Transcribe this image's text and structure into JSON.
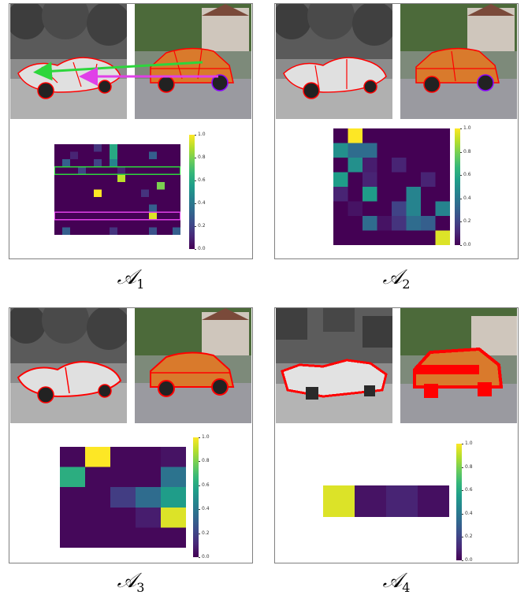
{
  "panels": [
    {
      "id": "A1",
      "label_main": "𝒜",
      "label_sub": "1",
      "heatmap": {
        "rows": 12,
        "cols": 16,
        "cells": [
          [
            0,
            0,
            0,
            0,
            0,
            0.15,
            0,
            0.6,
            0,
            0,
            0,
            0,
            0,
            0,
            0,
            0
          ],
          [
            0,
            0,
            0.1,
            0,
            0,
            0,
            0,
            0.6,
            0,
            0,
            0,
            0,
            0.3,
            0,
            0,
            0
          ],
          [
            0,
            0.3,
            0,
            0,
            0,
            0.2,
            0,
            0.45,
            0,
            0,
            0,
            0,
            0,
            0,
            0,
            0
          ],
          [
            0,
            0,
            0,
            0.2,
            0,
            0,
            0,
            0,
            0.1,
            0,
            0,
            0,
            0,
            0,
            0,
            0
          ],
          [
            0,
            0,
            0,
            0,
            0,
            0,
            0,
            0,
            0.9,
            0,
            0,
            0,
            0,
            0,
            0,
            0
          ],
          [
            0,
            0,
            0,
            0,
            0,
            0,
            0,
            0,
            0,
            0,
            0,
            0,
            0,
            0.8,
            0,
            0
          ],
          [
            0,
            0,
            0,
            0,
            0,
            1.0,
            0,
            0,
            0,
            0,
            0,
            0.15,
            0,
            0,
            0,
            0
          ],
          [
            0,
            0,
            0,
            0,
            0,
            0,
            0,
            0,
            0,
            0,
            0,
            0,
            0,
            0,
            0,
            0
          ],
          [
            0,
            0,
            0,
            0,
            0,
            0,
            0,
            0,
            0,
            0,
            0,
            0,
            0.3,
            0,
            0,
            0
          ],
          [
            0,
            0,
            0,
            0,
            0,
            0,
            0,
            0,
            0,
            0,
            0,
            0,
            0.95,
            0,
            0,
            0
          ],
          [
            0,
            0,
            0,
            0,
            0,
            0,
            0,
            0,
            0,
            0,
            0,
            0,
            0,
            0,
            0,
            0
          ],
          [
            0,
            0.3,
            0,
            0,
            0,
            0,
            0,
            0.15,
            0,
            0,
            0,
            0,
            0.25,
            0,
            0,
            0.3
          ]
        ],
        "highlight_rows": [
          {
            "row": 3,
            "color": "#2dd63c"
          },
          {
            "row": 9,
            "color": "#e040e8"
          }
        ]
      }
    },
    {
      "id": "A2",
      "label_main": "𝒜",
      "label_sub": "2",
      "heatmap": {
        "rows": 8,
        "cols": 8,
        "cells": [
          [
            0,
            1.0,
            0,
            0,
            0,
            0,
            0,
            0
          ],
          [
            0.5,
            0.35,
            0.35,
            0,
            0,
            0,
            0,
            0
          ],
          [
            0,
            0.5,
            0.08,
            0,
            0.1,
            0,
            0,
            0
          ],
          [
            0.55,
            0,
            0.1,
            0,
            0,
            0,
            0.1,
            0
          ],
          [
            0.1,
            0,
            0.55,
            0,
            0,
            0.45,
            0,
            0
          ],
          [
            0,
            0.05,
            0,
            0,
            0.2,
            0.45,
            0,
            0.45
          ],
          [
            0,
            0,
            0.35,
            0.05,
            0.15,
            0.35,
            0.3,
            0
          ],
          [
            0,
            0,
            0,
            0,
            0,
            0,
            0,
            0.95
          ]
        ]
      }
    },
    {
      "id": "A3",
      "label_main": "𝒜",
      "label_sub": "3",
      "heatmap": {
        "rows": 5,
        "cols": 5,
        "cells": [
          [
            0.02,
            1.0,
            0.02,
            0.02,
            0.05
          ],
          [
            0.62,
            0.02,
            0.02,
            0.02,
            0.38
          ],
          [
            0.02,
            0.02,
            0.18,
            0.35,
            0.55
          ],
          [
            0.02,
            0.02,
            0.02,
            0.08,
            0.95
          ],
          [
            0.02,
            0.02,
            0.02,
            0.02,
            0.02
          ]
        ]
      }
    },
    {
      "id": "A4",
      "label_main": "𝒜",
      "label_sub": "4",
      "heatmap": {
        "rows": 1,
        "cols": 4,
        "cells": [
          [
            0.95,
            0.05,
            0.1,
            0.04
          ]
        ]
      }
    }
  ],
  "colorbar": {
    "ticks": [
      "0.0",
      "0.2",
      "0.4",
      "0.6",
      "0.8",
      "1.0"
    ]
  },
  "colors": {
    "car_outline": "#ff0000",
    "arrow_green": "#2dd63c",
    "arrow_magenta": "#e040e8"
  }
}
